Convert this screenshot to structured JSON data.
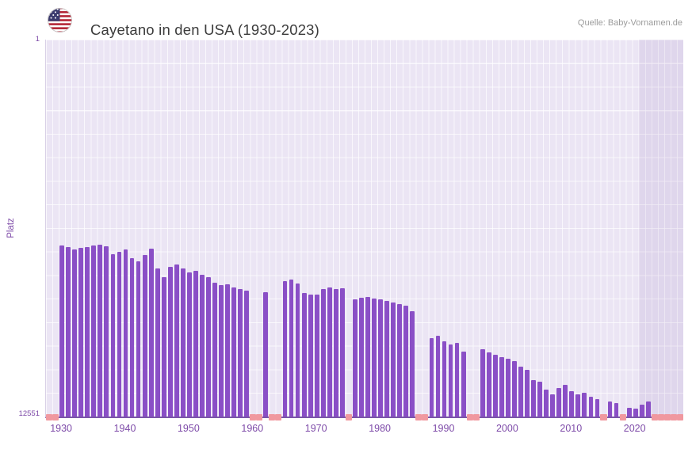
{
  "header": {
    "title": "Cayetano in den USA (1930-2023)",
    "source": "Quelle: Baby-Vornamen.de"
  },
  "icons": {
    "flag": "us-flag-icon"
  },
  "axes": {
    "y_label": "Platz",
    "y_top_tick": "1",
    "y_bottom_tick": "12551",
    "x_ticks": [
      "1930",
      "1940",
      "1950",
      "1960",
      "1970",
      "1980",
      "1990",
      "2000",
      "2010",
      "2020"
    ]
  },
  "colors": {
    "bar": "#8a4fc6",
    "plot_background": "#ebe5f4",
    "grid": "#ffffff",
    "axis_text": "#7d4aa8",
    "axis_line": "#7a55a8",
    "unranked_tick": "#f0989f",
    "title_text": "#3c3c3c",
    "source_text": "#9b9b9b",
    "highlight_band": "rgba(106,70,160,0.09)"
  },
  "chart_data": {
    "type": "bar",
    "title": "Cayetano in den USA (1930-2023)",
    "xlabel": "",
    "ylabel": "Platz",
    "y_axis": {
      "min": 1,
      "max": 12551,
      "inverted": true,
      "top_label": "1",
      "bottom_label": "12551"
    },
    "x_domain": [
      1928,
      2028
    ],
    "x_start_year": 1930,
    "x_end_year": 2023,
    "note": "Rank per year (lower = more popular); null = not ranked that year",
    "ranks": [
      6850,
      6900,
      6980,
      6940,
      6900,
      6860,
      6820,
      6890,
      7150,
      7060,
      6990,
      7270,
      7380,
      7180,
      6950,
      7620,
      7900,
      7560,
      7480,
      7630,
      7750,
      7700,
      7830,
      7900,
      8100,
      8180,
      8150,
      8250,
      8300,
      8350,
      null,
      null,
      8400,
      null,
      null,
      8050,
      8000,
      8130,
      8450,
      8500,
      8480,
      8300,
      8260,
      8310,
      8290,
      null,
      8650,
      8600,
      8560,
      8610,
      8650,
      8700,
      8760,
      8800,
      8860,
      9050,
      null,
      null,
      9950,
      9860,
      10050,
      10150,
      10100,
      10400,
      null,
      null,
      10300,
      10420,
      10500,
      10560,
      10620,
      10700,
      10900,
      11000,
      11350,
      11400,
      11650,
      11800,
      11600,
      11500,
      11700,
      11820,
      11760,
      11900,
      11960,
      null,
      12050,
      12100,
      null,
      12250,
      12300,
      12150,
      12060,
      null
    ],
    "unranked_tick_years": [
      1928,
      1929,
      1960,
      1961,
      1963,
      1964,
      1975,
      1986,
      1987,
      1994,
      1995,
      2015,
      2018,
      2023,
      2024,
      2025,
      2026,
      2027
    ],
    "highlight_band_start_year": 2021,
    "legend": null,
    "grid": true
  }
}
